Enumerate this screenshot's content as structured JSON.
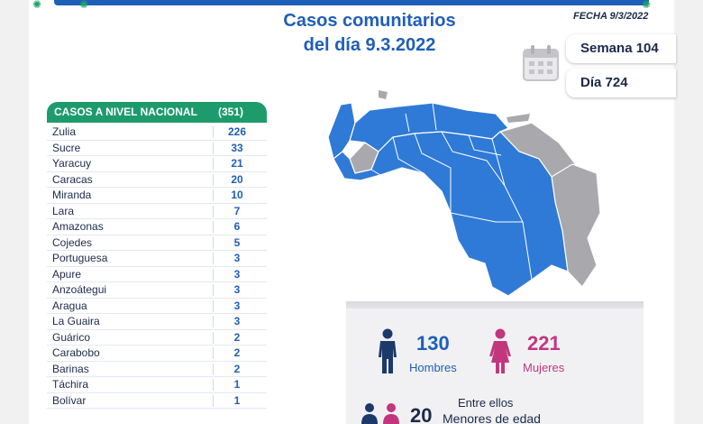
{
  "header": {
    "title_line1": "Casos comunitarios",
    "title_line2": "del día 9.3.2022",
    "fecha": "FECHA 9/3/2022",
    "semana": "Semana 104",
    "dia": "Día 724"
  },
  "table": {
    "title": "CASOS A NIVEL NACIONAL",
    "total": "(351)",
    "rows": [
      {
        "state": "Zulia",
        "count": "226"
      },
      {
        "state": "Sucre",
        "count": "33"
      },
      {
        "state": "Yaracuy",
        "count": "21"
      },
      {
        "state": "Caracas",
        "count": "20"
      },
      {
        "state": "Miranda",
        "count": "10"
      },
      {
        "state": "Lara",
        "count": "7"
      },
      {
        "state": "Amazonas",
        "count": "6"
      },
      {
        "state": "Cojedes",
        "count": "5"
      },
      {
        "state": "Portuguesa",
        "count": "3"
      },
      {
        "state": "Apure",
        "count": "3"
      },
      {
        "state": "Anzoátegui",
        "count": "3"
      },
      {
        "state": "Aragua",
        "count": "3"
      },
      {
        "state": "La Guaira",
        "count": "3"
      },
      {
        "state": "Guárico",
        "count": "2"
      },
      {
        "state": "Carabobo",
        "count": "2"
      },
      {
        "state": "Barinas",
        "count": "2"
      },
      {
        "state": "Táchira",
        "count": "1"
      },
      {
        "state": "Bolívar",
        "count": "1"
      }
    ]
  },
  "gender": {
    "hombres_count": "130",
    "hombres_label": "Hombres",
    "mujeres_count": "221",
    "mujeres_label": "Mujeres"
  },
  "menores": {
    "entre_label": "Entre ellos",
    "count": "20",
    "label": "Menores de edad"
  },
  "colors": {
    "brand_blue": "#1f5fb8",
    "brand_green": "#1d9b6c",
    "female_pink": "#c2367e",
    "map_affected": "#2f7ad6",
    "map_unaffected": "#a9a9ad"
  },
  "icons": {
    "calendar": "calendar-icon",
    "male": "male-person-icon",
    "female": "female-person-icon",
    "children": "children-icon"
  }
}
